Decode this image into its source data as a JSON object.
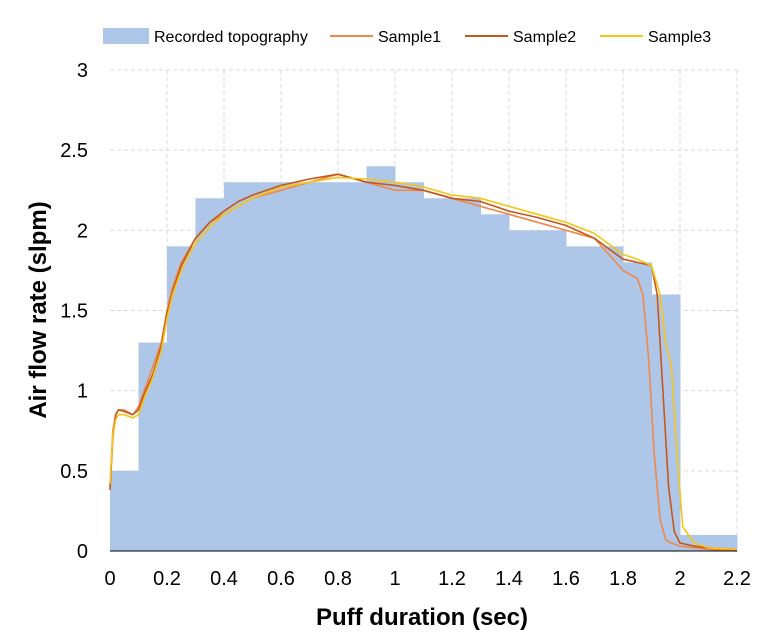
{
  "chart_data": {
    "type": "line",
    "xlabel": "Puff duration (sec)",
    "ylabel": "Air flow rate (slpm)",
    "xlim": [
      0,
      2.2
    ],
    "ylim": [
      0,
      3
    ],
    "x_ticks": [
      "0",
      "0.2",
      "0.4",
      "0.6",
      "0.8",
      "1",
      "1.2",
      "1.4",
      "1.6",
      "1.8",
      "2",
      "2.2"
    ],
    "y_ticks": [
      "0",
      "0.5",
      "1",
      "1.5",
      "2",
      "2.5",
      "3"
    ],
    "grid": true,
    "legend_position": "top",
    "bar_series": {
      "name": "Recorded topography",
      "color": "#aec7e8",
      "bin_width": 0.1,
      "bins": [
        {
          "x0": 0.0,
          "value": 0.5
        },
        {
          "x0": 0.1,
          "value": 1.3
        },
        {
          "x0": 0.2,
          "value": 1.9
        },
        {
          "x0": 0.3,
          "value": 2.2
        },
        {
          "x0": 0.4,
          "value": 2.3
        },
        {
          "x0": 0.5,
          "value": 2.3
        },
        {
          "x0": 0.6,
          "value": 2.3
        },
        {
          "x0": 0.7,
          "value": 2.3
        },
        {
          "x0": 0.8,
          "value": 2.3
        },
        {
          "x0": 0.9,
          "value": 2.4
        },
        {
          "x0": 1.0,
          "value": 2.3
        },
        {
          "x0": 1.1,
          "value": 2.2
        },
        {
          "x0": 1.2,
          "value": 2.2
        },
        {
          "x0": 1.3,
          "value": 2.1
        },
        {
          "x0": 1.4,
          "value": 2.0
        },
        {
          "x0": 1.5,
          "value": 2.0
        },
        {
          "x0": 1.6,
          "value": 1.9
        },
        {
          "x0": 1.7,
          "value": 1.9
        },
        {
          "x0": 1.8,
          "value": 1.8
        },
        {
          "x0": 1.9,
          "value": 1.6
        },
        {
          "x0": 2.0,
          "value": 0.1
        },
        {
          "x0": 2.1,
          "value": 0.1
        }
      ]
    },
    "series": [
      {
        "name": "Sample1",
        "color": "#f0884a",
        "x": [
          0,
          0.01,
          0.02,
          0.03,
          0.05,
          0.08,
          0.1,
          0.12,
          0.15,
          0.18,
          0.2,
          0.22,
          0.25,
          0.3,
          0.35,
          0.4,
          0.45,
          0.5,
          0.6,
          0.7,
          0.8,
          0.9,
          1.0,
          1.1,
          1.2,
          1.3,
          1.4,
          1.5,
          1.6,
          1.7,
          1.75,
          1.8,
          1.85,
          1.87,
          1.89,
          1.91,
          1.93,
          1.95,
          1.97,
          2.0,
          2.05,
          2.1,
          2.2
        ],
        "y": [
          0.4,
          0.75,
          0.85,
          0.88,
          0.88,
          0.85,
          0.9,
          1.0,
          1.15,
          1.3,
          1.5,
          1.65,
          1.8,
          1.95,
          2.05,
          2.1,
          2.15,
          2.2,
          2.25,
          2.3,
          2.35,
          2.3,
          2.25,
          2.25,
          2.2,
          2.15,
          2.1,
          2.05,
          2.0,
          1.95,
          1.85,
          1.75,
          1.7,
          1.6,
          1.2,
          0.6,
          0.2,
          0.07,
          0.05,
          0.03,
          0.02,
          0.01,
          0.0
        ]
      },
      {
        "name": "Sample2",
        "color": "#c8561a",
        "x": [
          0,
          0.01,
          0.02,
          0.03,
          0.05,
          0.08,
          0.1,
          0.12,
          0.15,
          0.18,
          0.2,
          0.22,
          0.25,
          0.3,
          0.35,
          0.4,
          0.45,
          0.5,
          0.6,
          0.7,
          0.8,
          0.9,
          1.0,
          1.1,
          1.2,
          1.3,
          1.4,
          1.5,
          1.6,
          1.7,
          1.8,
          1.85,
          1.9,
          1.92,
          1.94,
          1.96,
          1.98,
          2.0,
          2.05,
          2.1,
          2.2
        ],
        "y": [
          0.38,
          0.7,
          0.85,
          0.88,
          0.87,
          0.85,
          0.88,
          0.98,
          1.1,
          1.28,
          1.48,
          1.62,
          1.78,
          1.95,
          2.05,
          2.12,
          2.18,
          2.22,
          2.28,
          2.32,
          2.35,
          2.3,
          2.28,
          2.25,
          2.2,
          2.18,
          2.12,
          2.08,
          2.03,
          1.95,
          1.82,
          1.8,
          1.78,
          1.6,
          1.0,
          0.4,
          0.12,
          0.05,
          0.03,
          0.02,
          0.01
        ]
      },
      {
        "name": "Sample3",
        "color": "#f5c518",
        "x": [
          0,
          0.01,
          0.02,
          0.03,
          0.05,
          0.08,
          0.1,
          0.12,
          0.15,
          0.18,
          0.2,
          0.22,
          0.25,
          0.3,
          0.35,
          0.4,
          0.45,
          0.5,
          0.6,
          0.7,
          0.8,
          0.9,
          1.0,
          1.1,
          1.2,
          1.3,
          1.4,
          1.5,
          1.6,
          1.7,
          1.8,
          1.85,
          1.9,
          1.93,
          1.95,
          1.97,
          1.99,
          2.01,
          2.05,
          2.1,
          2.2
        ],
        "y": [
          0.42,
          0.72,
          0.82,
          0.85,
          0.85,
          0.83,
          0.85,
          0.95,
          1.08,
          1.25,
          1.45,
          1.6,
          1.75,
          1.92,
          2.02,
          2.1,
          2.15,
          2.2,
          2.27,
          2.3,
          2.33,
          2.32,
          2.3,
          2.27,
          2.22,
          2.2,
          2.15,
          2.1,
          2.05,
          1.98,
          1.85,
          1.82,
          1.78,
          1.6,
          1.3,
          1.15,
          0.6,
          0.15,
          0.05,
          0.02,
          0.01
        ]
      }
    ]
  }
}
